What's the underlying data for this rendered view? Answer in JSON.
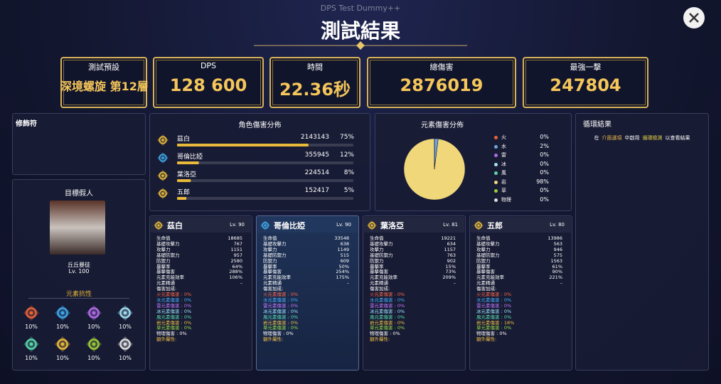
{
  "header": {
    "subtitle": "DPS Test Dummy++",
    "title": "測試結果"
  },
  "stats": [
    {
      "label": "測試預設",
      "value": "深境螺旋 第12層"
    },
    {
      "label": "DPS",
      "value": "128 600"
    },
    {
      "label": "時間",
      "value": "22.36秒"
    },
    {
      "label": "總傷害",
      "value": "2876019"
    },
    {
      "label": "最強一擊",
      "value": "247804"
    }
  ],
  "modifiers": {
    "title": "修飾符"
  },
  "target": {
    "title": "目標假人",
    "name": "丘丘暴徒",
    "level": "Lv. 100",
    "resistance_title": "元素抗性",
    "resistances": [
      {
        "color": "#e8643a",
        "value": "10%"
      },
      {
        "color": "#3fa7e8",
        "value": "10%"
      },
      {
        "color": "#b06ce8",
        "value": "10%"
      },
      {
        "color": "#9fdcef",
        "value": "10%"
      },
      {
        "color": "#58d6a8",
        "value": "10%"
      },
      {
        "color": "#e8b93a",
        "value": "10%"
      },
      {
        "color": "#9bcb3a",
        "value": "10%"
      },
      {
        "color": "#dddddd",
        "value": "10%"
      }
    ]
  },
  "character_damage": {
    "title": "角色傷害分佈",
    "rows": [
      {
        "name": "茲白",
        "damage": 2143143,
        "share": "75%",
        "color": "#e8b93a"
      },
      {
        "name": "哥倫比婭",
        "damage": 355945,
        "share": "12%",
        "color": "#3fa7e8"
      },
      {
        "name": "葉洛亞",
        "damage": 224514,
        "share": "8%",
        "color": "#e8b93a"
      },
      {
        "name": "五郎",
        "damage": 152417,
        "share": "5%",
        "color": "#e8b93a"
      }
    ]
  },
  "element_damage": {
    "title": "元素傷害分佈",
    "items": [
      {
        "name": "火",
        "value": 0,
        "label": "0%",
        "color": "#e8643a"
      },
      {
        "name": "水",
        "value": 2,
        "label": "2%",
        "color": "#6fa8dc"
      },
      {
        "name": "雷",
        "value": 0,
        "label": "0%",
        "color": "#b06ce8"
      },
      {
        "name": "冰",
        "value": 0,
        "label": "0%",
        "color": "#a8e0f0"
      },
      {
        "name": "風",
        "value": 0,
        "label": "0%",
        "color": "#5fd3a8"
      },
      {
        "name": "岩",
        "value": 98,
        "label": "98%",
        "color": "#f0d77a"
      },
      {
        "name": "草",
        "value": 0,
        "label": "0%",
        "color": "#9bcb3a"
      },
      {
        "name": "物理",
        "value": 0,
        "label": "0%",
        "color": "#dddddd"
      }
    ]
  },
  "cycle": {
    "title": "循環結果",
    "message": [
      {
        "text": "在",
        "color": "#ffffff"
      },
      {
        "text": "介面選項",
        "color": "#f0b94a"
      },
      {
        "text": "中啟用",
        "color": "#ffffff"
      },
      {
        "text": "循環檢測",
        "color": "#e8d24a"
      },
      {
        "text": "以查看結果",
        "color": "#ffffff"
      }
    ]
  },
  "cards": [
    {
      "name": "茲白",
      "level": "Lv. 90",
      "color": "#e8b93a",
      "stats": [
        {
          "label": "生命值",
          "value": 18685
        },
        {
          "label": "基礎攻擊力",
          "value": 767
        },
        {
          "label": "攻擊力",
          "value": 1151
        },
        {
          "label": "基礎防禦力",
          "value": 957
        },
        {
          "label": "防禦力",
          "value": 2580
        },
        {
          "label": "暴擊率",
          "value": "64%"
        },
        {
          "label": "暴擊傷害",
          "value": "288%"
        },
        {
          "label": "元素充能效率",
          "value": "106%"
        },
        {
          "label": "元素精通",
          "value": "–"
        }
      ],
      "bonus_title": "傷害加成:",
      "bonuses": [
        {
          "text": "火元素傷害 : 0%",
          "color": "#ff6a4a"
        },
        {
          "text": "水元素傷害 : 0%",
          "color": "#4ab0ff"
        },
        {
          "text": "雷元素傷害 : 0%",
          "color": "#c07cff"
        },
        {
          "text": "冰元素傷害 : 0%",
          "color": "#9fe6ff"
        },
        {
          "text": "風元素傷害 : 0%",
          "color": "#5fe0b0"
        },
        {
          "text": "岩元素傷害 : 0%",
          "color": "#f0c24a"
        },
        {
          "text": "草元素傷害 : 0%",
          "color": "#9be04a"
        },
        {
          "text": "物理傷害 : 0%",
          "color": "#ffffff"
        }
      ],
      "extra": "額外屬性:"
    },
    {
      "name": "哥倫比婭",
      "level": "Lv. 90",
      "color": "#3fa7e8",
      "stats": [
        {
          "label": "生命值",
          "value": 33548
        },
        {
          "label": "基礎攻擊力",
          "value": 638
        },
        {
          "label": "攻擊力",
          "value": 1149
        },
        {
          "label": "基礎防禦力",
          "value": 515
        },
        {
          "label": "防禦力",
          "value": 609
        },
        {
          "label": "暴擊率",
          "value": "50%"
        },
        {
          "label": "暴擊傷害",
          "value": "254%"
        },
        {
          "label": "元素充能效率",
          "value": "175%"
        },
        {
          "label": "元素精通",
          "value": "–"
        }
      ],
      "bonus_title": "傷害加成:",
      "bonuses": [
        {
          "text": "火元素傷害 : 0%",
          "color": "#ff6a4a"
        },
        {
          "text": "水元素傷害 : 0%",
          "color": "#4ab0ff"
        },
        {
          "text": "雷元素傷害 : 0%",
          "color": "#c07cff"
        },
        {
          "text": "冰元素傷害 : 0%",
          "color": "#9fe6ff"
        },
        {
          "text": "風元素傷害 : 0%",
          "color": "#5fe0b0"
        },
        {
          "text": "岩元素傷害 : 0%",
          "color": "#f0c24a"
        },
        {
          "text": "草元素傷害 : 0%",
          "color": "#9be04a"
        },
        {
          "text": "物理傷害 : 0%",
          "color": "#ffffff"
        }
      ],
      "extra": "額外屬性:"
    },
    {
      "name": "葉洛亞",
      "level": "Lv. 81",
      "color": "#e8b93a",
      "stats": [
        {
          "label": "生命值",
          "value": 19221
        },
        {
          "label": "基礎攻擊力",
          "value": 634
        },
        {
          "label": "攻擊力",
          "value": 1157
        },
        {
          "label": "基礎防禦力",
          "value": 763
        },
        {
          "label": "防禦力",
          "value": 902
        },
        {
          "label": "暴擊率",
          "value": "15%"
        },
        {
          "label": "暴擊傷害",
          "value": "73%"
        },
        {
          "label": "元素充能效率",
          "value": "209%"
        },
        {
          "label": "元素精通",
          "value": "–"
        }
      ],
      "bonus_title": "傷害加成:",
      "bonuses": [
        {
          "text": "火元素傷害 : 0%",
          "color": "#ff6a4a"
        },
        {
          "text": "水元素傷害 : 0%",
          "color": "#4ab0ff"
        },
        {
          "text": "雷元素傷害 : 0%",
          "color": "#c07cff"
        },
        {
          "text": "冰元素傷害 : 0%",
          "color": "#9fe6ff"
        },
        {
          "text": "風元素傷害 : 0%",
          "color": "#5fe0b0"
        },
        {
          "text": "岩元素傷害 : 0%",
          "color": "#f0c24a"
        },
        {
          "text": "草元素傷害 : 0%",
          "color": "#9be04a"
        },
        {
          "text": "物理傷害 : 0%",
          "color": "#ffffff"
        }
      ],
      "extra": "額外屬性:"
    },
    {
      "name": "五郎",
      "level": "Lv. 80",
      "color": "#e8b93a",
      "stats": [
        {
          "label": "生命值",
          "value": 13986
        },
        {
          "label": "基礎攻擊力",
          "value": 563
        },
        {
          "label": "攻擊力",
          "value": 946
        },
        {
          "label": "基礎防禦力",
          "value": 575
        },
        {
          "label": "防禦力",
          "value": 1563
        },
        {
          "label": "暴擊率",
          "value": "61%"
        },
        {
          "label": "暴擊傷害",
          "value": "90%"
        },
        {
          "label": "元素充能效率",
          "value": "221%"
        },
        {
          "label": "元素精通",
          "value": "–"
        }
      ],
      "bonus_title": "傷害加成:",
      "bonuses": [
        {
          "text": "火元素傷害 : 0%",
          "color": "#ff6a4a"
        },
        {
          "text": "水元素傷害 : 0%",
          "color": "#4ab0ff"
        },
        {
          "text": "雷元素傷害 : 0%",
          "color": "#c07cff"
        },
        {
          "text": "冰元素傷害 : 0%",
          "color": "#9fe6ff"
        },
        {
          "text": "風元素傷害 : 0%",
          "color": "#5fe0b0"
        },
        {
          "text": "岩元素傷害 : 18%",
          "color": "#f0c24a"
        },
        {
          "text": "草元素傷害 : 0%",
          "color": "#9be04a"
        },
        {
          "text": "物理傷害 : 0%",
          "color": "#ffffff"
        }
      ],
      "extra": "額外屬性:"
    }
  ]
}
